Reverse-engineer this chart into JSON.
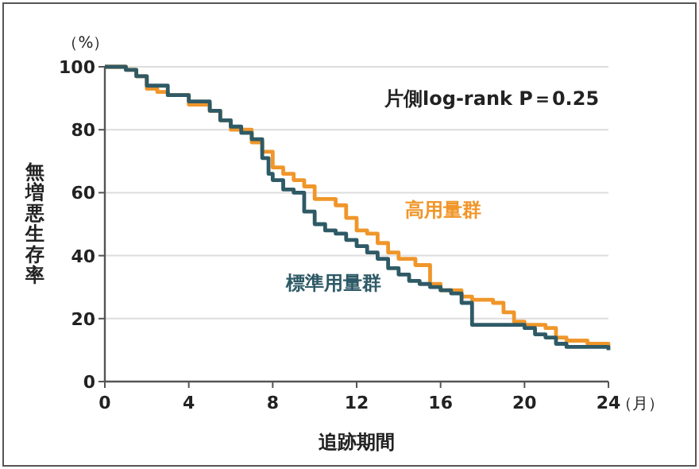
{
  "chart_data": {
    "type": "step",
    "xlabel": "追跡期間",
    "ylabel": "無増悪生存率",
    "annotations": [
      "片側log-rank P＝0.25",
      "（%）",
      "（月）"
    ],
    "xlim": [
      0,
      24
    ],
    "xticks": [
      0,
      4,
      8,
      12,
      16,
      20,
      24
    ],
    "ylim": [
      0,
      100
    ],
    "yticks": [
      0,
      20,
      40,
      60,
      80,
      100
    ],
    "grid": "y",
    "series": [
      {
        "name": "高用量群",
        "color": "#f0962a",
        "x": [
          0,
          1,
          1.5,
          2,
          2.5,
          3,
          4,
          5,
          5.5,
          6,
          7,
          7.5,
          8,
          8.5,
          9,
          9.5,
          10,
          11,
          11.5,
          12,
          12.5,
          13,
          13.5,
          14,
          14.8,
          15.5,
          16,
          17,
          17.5,
          18.5,
          19,
          19.5,
          20,
          21,
          21.5,
          22,
          23,
          24
        ],
        "values": [
          100,
          99,
          97,
          93,
          92,
          91,
          88,
          86,
          83,
          80,
          76,
          73,
          68,
          66,
          64,
          62,
          58,
          56,
          52,
          48,
          47,
          44,
          41,
          39,
          37,
          31,
          29,
          27,
          26,
          25,
          22,
          19,
          18,
          17,
          14,
          13,
          12,
          11
        ]
      },
      {
        "name": "標準用量群",
        "color": "#2e5a66",
        "x": [
          0,
          1,
          1.5,
          2,
          3,
          4,
          5,
          5.5,
          6,
          6.5,
          7,
          7.5,
          7.8,
          8,
          8.5,
          9,
          9.5,
          10,
          10.5,
          11,
          11.5,
          12,
          12.5,
          13,
          13.5,
          14,
          14.5,
          15,
          15.5,
          16,
          16.5,
          17,
          17.5,
          19.5,
          20,
          20.5,
          21,
          21.5,
          22,
          23.5,
          24
        ],
        "values": [
          100,
          99,
          97,
          94,
          91,
          89,
          86,
          83,
          81,
          79,
          77,
          71,
          66,
          64,
          61,
          60,
          54,
          50,
          48,
          47,
          45,
          43,
          41,
          39,
          36,
          34,
          32,
          31,
          30,
          29,
          28,
          25,
          18,
          18,
          17,
          15,
          14,
          12,
          11,
          11,
          10
        ]
      }
    ]
  }
}
